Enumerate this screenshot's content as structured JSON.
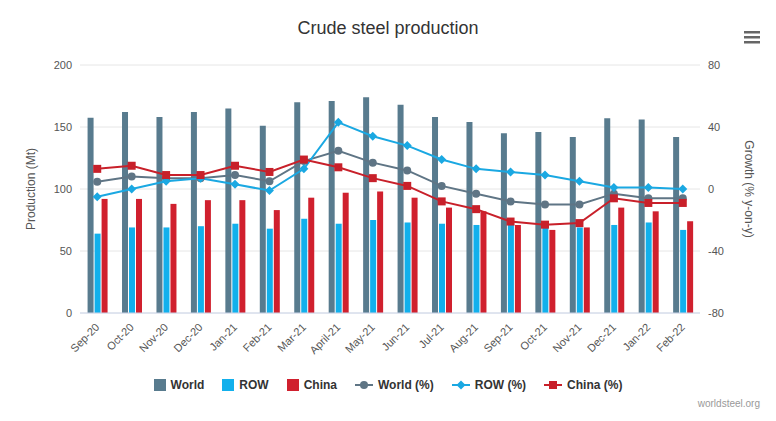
{
  "chart_data": {
    "type": "bar",
    "title": "Crude steel production",
    "x_label": null,
    "y_label": "Production (Mt)",
    "y2_label": "Growth (% y-on-y)",
    "annotations": [
      "worldsteel.org"
    ],
    "categories": [
      "Sep-20",
      "Oct-20",
      "Nov-20",
      "Dec-20",
      "Jan-21",
      "Feb-21",
      "Mar-21",
      "April-21",
      "May-21",
      "Jun-21",
      "Jul-21",
      "Aug-21",
      "Sep-21",
      "Oct-21",
      "Nov-21",
      "Dec-21",
      "Jan-22",
      "Feb-22"
    ],
    "series": [
      {
        "name": "World",
        "type": "bar",
        "color": "#587b8e",
        "values": [
          157.5,
          162,
          158,
          162,
          165,
          151,
          170,
          171,
          174,
          168,
          158,
          154,
          145,
          146,
          142,
          157,
          156,
          142
        ]
      },
      {
        "name": "ROW",
        "type": "bar",
        "color": "#12b0ec",
        "values": [
          64,
          69,
          69,
          70,
          72,
          68,
          76,
          72,
          75,
          73,
          72,
          71,
          72,
          72,
          69,
          71,
          73,
          67
        ]
      },
      {
        "name": "China",
        "type": "bar",
        "color": "#d0202e",
        "values": [
          92,
          92,
          88,
          91,
          91,
          83,
          93,
          97,
          98,
          93,
          85,
          82,
          71,
          67,
          69,
          85,
          82,
          74
        ]
      },
      {
        "name": "World (%)",
        "type": "line",
        "axis": "y2",
        "marker": "circle",
        "color": "#5f7585",
        "values": [
          4.7,
          8,
          7,
          7,
          9,
          5,
          18,
          24.7,
          17,
          12,
          2,
          -3,
          -8,
          -10,
          -10,
          -3,
          -6,
          -6
        ]
      },
      {
        "name": "ROW (%)",
        "type": "line",
        "axis": "y2",
        "marker": "diamond",
        "color": "#1aa8e2",
        "values": [
          -5,
          0,
          5,
          7,
          3,
          -1,
          13,
          43,
          34,
          28,
          19,
          13,
          11,
          9,
          5,
          1,
          1,
          0
        ]
      },
      {
        "name": "China (%)",
        "type": "line",
        "axis": "y2",
        "marker": "square",
        "color": "#c8202a",
        "values": [
          13,
          15,
          9,
          9,
          15,
          11,
          19,
          14,
          7,
          2,
          -8,
          -13,
          -21,
          -23,
          -22,
          -6,
          -9,
          -9
        ]
      }
    ],
    "ylim": [
      0,
      200
    ],
    "yticks": [
      0,
      50,
      100,
      150,
      200
    ],
    "y2lim": [
      -80,
      80
    ],
    "y2ticks": [
      -80,
      -40,
      0,
      40,
      80
    ],
    "grid": true,
    "legend": "bottom"
  }
}
